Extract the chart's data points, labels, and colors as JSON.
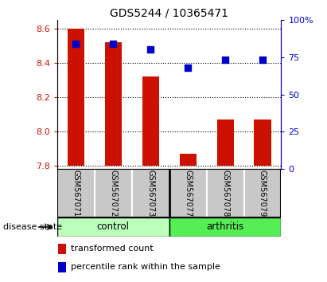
{
  "title": "GDS5244 / 10365471",
  "samples": [
    "GSM567071",
    "GSM567072",
    "GSM567073",
    "GSM567077",
    "GSM567078",
    "GSM567079"
  ],
  "transformed_count": [
    8.6,
    8.52,
    8.32,
    7.87,
    8.07,
    8.07
  ],
  "percentile_rank": [
    84,
    84,
    80,
    68,
    73,
    73
  ],
  "bar_bottom": 7.8,
  "ylim_left": [
    7.78,
    8.65
  ],
  "ylim_right": [
    0,
    100
  ],
  "yticks_left": [
    7.8,
    8.0,
    8.2,
    8.4,
    8.6
  ],
  "yticks_right": [
    0,
    25,
    50,
    75,
    100
  ],
  "bar_color": "#cc1100",
  "dot_color": "#0000cc",
  "control_color": "#bbffbb",
  "arthritis_color": "#55ee55",
  "sample_box_color": "#c8c8c8",
  "xlabel_label": "disease state",
  "legend_red_label": "transformed count",
  "legend_blue_label": "percentile rank within the sample",
  "title_fontsize": 10,
  "tick_fontsize": 8,
  "bar_width": 0.45,
  "dot_size": 30,
  "n_control": 3,
  "n_arthritis": 3
}
